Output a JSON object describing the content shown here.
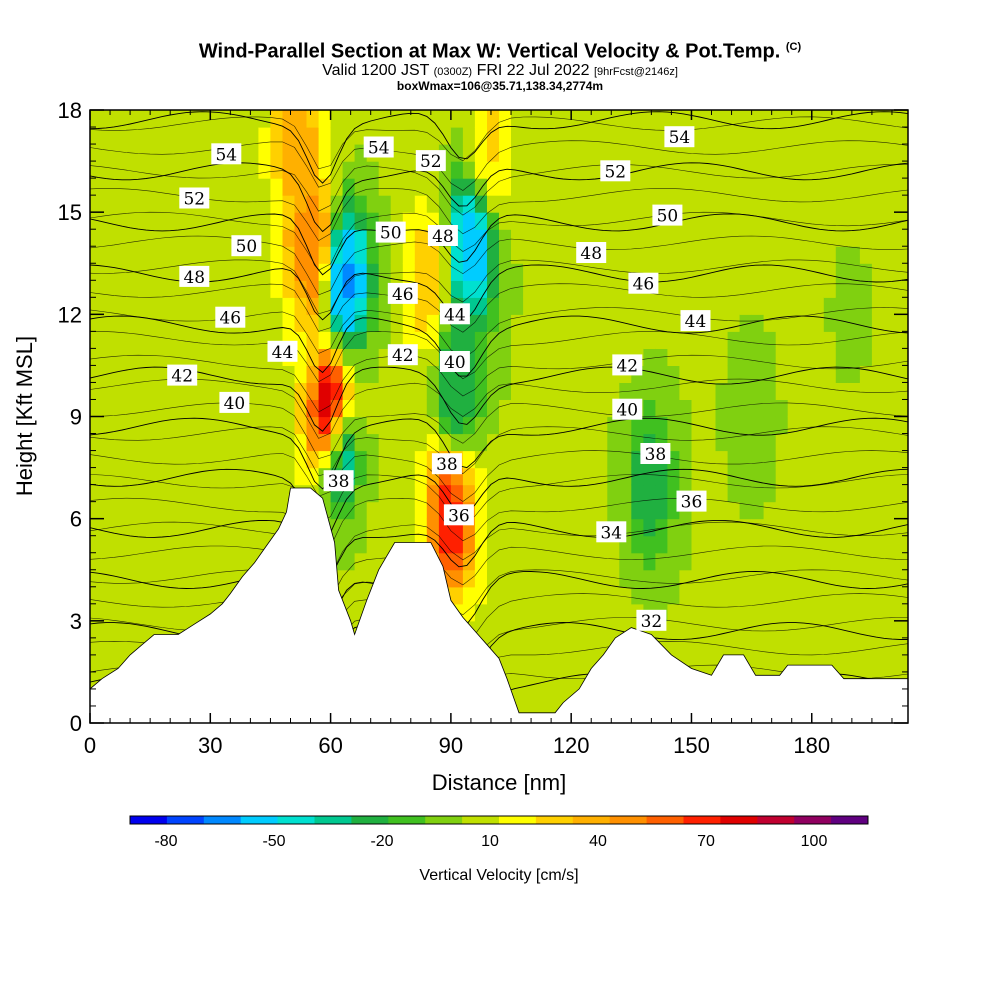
{
  "title": {
    "line1_main": "Wind-Parallel Section at Max W: Vertical Velocity & Pot.Temp.",
    "line1_sup": "(C)",
    "line2_a": "Valid 1200 JST",
    "line2_b": "(0300Z)",
    "line2_c": "FRI 22 Jul 2022",
    "line2_d": "[9hrFcst@2146z]",
    "line3": "boxWmax=106@35.71,138.34,2774m"
  },
  "chart_data": {
    "type": "heatmap",
    "xlabel": "Distance [nm]",
    "ylabel": "Height [Kft MSL]",
    "xlim": [
      0,
      204
    ],
    "ylim": [
      0,
      18
    ],
    "xticks": [
      0,
      30,
      60,
      90,
      120,
      150,
      180
    ],
    "yticks": [
      0,
      3,
      6,
      9,
      12,
      15,
      18
    ],
    "colorbar": {
      "label": "Vertical Velocity [cm/s]",
      "tick_values": [
        -80,
        -50,
        -20,
        10,
        40,
        70,
        100
      ],
      "min": -85,
      "max": 120,
      "colors": [
        "#0000ee",
        "#0044ff",
        "#0088ff",
        "#00ccff",
        "#00e0d0",
        "#00c890",
        "#20b040",
        "#40c020",
        "#80d010",
        "#c0e000",
        "#ffff00",
        "#ffd000",
        "#ffb000",
        "#ff9000",
        "#ff6000",
        "#ff2000",
        "#e00000",
        "#c00030",
        "#900060",
        "#600080"
      ]
    },
    "terrain": [
      [
        0,
        1.0
      ],
      [
        3,
        1.3
      ],
      [
        7,
        1.6
      ],
      [
        10,
        2.0
      ],
      [
        13,
        2.3
      ],
      [
        16,
        2.6
      ],
      [
        22,
        2.6
      ],
      [
        26,
        2.9
      ],
      [
        30,
        3.2
      ],
      [
        33,
        3.5
      ],
      [
        35,
        3.8
      ],
      [
        38,
        4.3
      ],
      [
        41,
        4.7
      ],
      [
        44,
        5.2
      ],
      [
        47,
        5.7
      ],
      [
        49,
        6.2
      ],
      [
        50,
        6.9
      ],
      [
        55,
        6.9
      ],
      [
        58,
        6.6
      ],
      [
        61,
        5.3
      ],
      [
        62,
        3.9
      ],
      [
        65,
        3.0
      ],
      [
        66,
        2.6
      ],
      [
        69,
        3.6
      ],
      [
        72,
        4.5
      ],
      [
        76,
        5.3
      ],
      [
        85,
        5.3
      ],
      [
        88,
        4.6
      ],
      [
        90,
        3.6
      ],
      [
        93,
        3.1
      ],
      [
        96,
        2.7
      ],
      [
        99,
        2.3
      ],
      [
        102,
        1.9
      ],
      [
        104,
        1.3
      ],
      [
        107,
        0.3
      ],
      [
        116,
        0.3
      ],
      [
        118,
        0.6
      ],
      [
        122,
        1.0
      ],
      [
        125,
        1.6
      ],
      [
        128,
        2.0
      ],
      [
        131,
        2.5
      ],
      [
        135,
        2.8
      ],
      [
        140,
        2.6
      ],
      [
        145,
        2.0
      ],
      [
        150,
        1.6
      ],
      [
        155,
        1.4
      ],
      [
        158,
        2.0
      ],
      [
        163,
        2.0
      ],
      [
        166,
        1.4
      ],
      [
        172,
        1.4
      ],
      [
        174,
        1.7
      ],
      [
        185,
        1.7
      ],
      [
        188,
        1.3
      ],
      [
        201,
        1.3
      ]
    ],
    "w_field": [
      {
        "x": 60,
        "y": 9,
        "w": 100
      },
      {
        "x": 55,
        "y": 14,
        "w": 60
      },
      {
        "x": 52,
        "y": 17,
        "w": 45
      },
      {
        "x": 64,
        "y": 13,
        "w": -60
      },
      {
        "x": 62,
        "y": 8,
        "w": -40
      },
      {
        "x": 90,
        "y": 6,
        "w": 75
      },
      {
        "x": 84,
        "y": 13,
        "w": 35
      },
      {
        "x": 95,
        "y": 14,
        "w": -55
      },
      {
        "x": 92,
        "y": 10,
        "w": -25
      },
      {
        "x": 100,
        "y": 17,
        "w": 30
      },
      {
        "x": 140,
        "y": 7,
        "w": -20
      },
      {
        "x": 165,
        "y": 9,
        "w": 0
      },
      {
        "x": 25,
        "y": 6,
        "w": 15
      },
      {
        "x": 190,
        "y": 12,
        "w": 5
      }
    ],
    "contour_labels": [
      {
        "text": "54",
        "x": 34,
        "y": 16.7
      },
      {
        "text": "52",
        "x": 26,
        "y": 15.4
      },
      {
        "text": "50",
        "x": 39,
        "y": 14.0
      },
      {
        "text": "48",
        "x": 26,
        "y": 13.1
      },
      {
        "text": "46",
        "x": 35,
        "y": 11.9
      },
      {
        "text": "44",
        "x": 48,
        "y": 10.9
      },
      {
        "text": "42",
        "x": 23,
        "y": 10.2
      },
      {
        "text": "40",
        "x": 36,
        "y": 9.4
      },
      {
        "text": "38",
        "x": 62,
        "y": 7.1
      },
      {
        "text": "54",
        "x": 72,
        "y": 16.9
      },
      {
        "text": "52",
        "x": 85,
        "y": 16.5
      },
      {
        "text": "50",
        "x": 75,
        "y": 14.4
      },
      {
        "text": "48",
        "x": 88,
        "y": 14.3
      },
      {
        "text": "46",
        "x": 78,
        "y": 12.6
      },
      {
        "text": "44",
        "x": 91,
        "y": 12.0
      },
      {
        "text": "42",
        "x": 78,
        "y": 10.8
      },
      {
        "text": "40",
        "x": 91,
        "y": 10.6
      },
      {
        "text": "38",
        "x": 89,
        "y": 7.6
      },
      {
        "text": "36",
        "x": 92,
        "y": 6.1
      },
      {
        "text": "54",
        "x": 147,
        "y": 17.2
      },
      {
        "text": "52",
        "x": 131,
        "y": 16.2
      },
      {
        "text": "50",
        "x": 144,
        "y": 14.9
      },
      {
        "text": "48",
        "x": 125,
        "y": 13.8
      },
      {
        "text": "46",
        "x": 138,
        "y": 12.9
      },
      {
        "text": "44",
        "x": 151,
        "y": 11.8
      },
      {
        "text": "42",
        "x": 134,
        "y": 10.5
      },
      {
        "text": "40",
        "x": 134,
        "y": 9.2
      },
      {
        "text": "38",
        "x": 141,
        "y": 7.9
      },
      {
        "text": "36",
        "x": 150,
        "y": 6.5
      },
      {
        "text": "34",
        "x": 130,
        "y": 5.6
      },
      {
        "text": "32",
        "x": 140,
        "y": 3.0
      }
    ],
    "theta_levels": [
      32,
      34,
      36,
      38,
      40,
      42,
      44,
      46,
      48,
      50,
      52,
      54
    ]
  }
}
